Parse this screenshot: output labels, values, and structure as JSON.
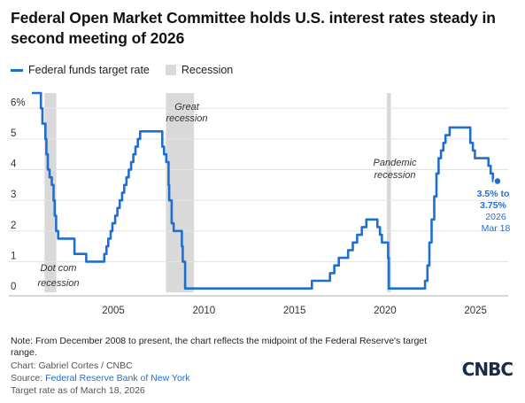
{
  "header": {
    "title": "Federal Open Market Committee holds U.S. interest rates steady in second meeting of 2026"
  },
  "legend": {
    "series_label": "Federal funds target rate",
    "recession_label": "Recession"
  },
  "chart_data": {
    "type": "line",
    "title": "Federal Open Market Committee holds U.S. interest rates steady in second meeting of 2026",
    "xlabel": "",
    "ylabel": "",
    "xlim": [
      2000.5,
      2026.8
    ],
    "ylim": [
      0,
      6.5
    ],
    "x_ticks": [
      2005,
      2010,
      2015,
      2020,
      2025
    ],
    "y_ticks": [
      0,
      1,
      2,
      3,
      4,
      5,
      6
    ],
    "y_tick_labels": [
      "0",
      "1",
      "2",
      "3",
      "4",
      "5",
      "6%"
    ],
    "colors": {
      "series": "#1f6fd1",
      "recession": "#d9d9d9",
      "grid": "#e3e3e3"
    },
    "recessions": [
      {
        "start": 2001.2,
        "end": 2001.85,
        "label": "Dot com recession"
      },
      {
        "start": 2007.9,
        "end": 2009.45,
        "label": "Great recession"
      },
      {
        "start": 2020.1,
        "end": 2020.33,
        "label": "Pandemic recession"
      }
    ],
    "series": [
      {
        "name": "Federal funds target rate",
        "points": [
          [
            2000.5,
            6.5
          ],
          [
            2001.0,
            6.5
          ],
          [
            2001.0,
            6.0
          ],
          [
            2001.08,
            6.0
          ],
          [
            2001.08,
            5.5
          ],
          [
            2001.25,
            5.5
          ],
          [
            2001.25,
            5.0
          ],
          [
            2001.3,
            5.0
          ],
          [
            2001.3,
            4.5
          ],
          [
            2001.38,
            4.5
          ],
          [
            2001.38,
            4.0
          ],
          [
            2001.48,
            4.0
          ],
          [
            2001.48,
            3.75
          ],
          [
            2001.6,
            3.75
          ],
          [
            2001.6,
            3.5
          ],
          [
            2001.7,
            3.5
          ],
          [
            2001.7,
            3.0
          ],
          [
            2001.76,
            3.0
          ],
          [
            2001.76,
            2.5
          ],
          [
            2001.84,
            2.5
          ],
          [
            2001.84,
            2.0
          ],
          [
            2001.95,
            2.0
          ],
          [
            2001.95,
            1.75
          ],
          [
            2002.85,
            1.75
          ],
          [
            2002.85,
            1.25
          ],
          [
            2003.5,
            1.25
          ],
          [
            2003.5,
            1.0
          ],
          [
            2004.5,
            1.0
          ],
          [
            2004.5,
            1.25
          ],
          [
            2004.62,
            1.25
          ],
          [
            2004.62,
            1.5
          ],
          [
            2004.72,
            1.5
          ],
          [
            2004.72,
            1.75
          ],
          [
            2004.85,
            1.75
          ],
          [
            2004.85,
            2.0
          ],
          [
            2004.95,
            2.0
          ],
          [
            2004.95,
            2.25
          ],
          [
            2005.1,
            2.25
          ],
          [
            2005.1,
            2.5
          ],
          [
            2005.22,
            2.5
          ],
          [
            2005.22,
            2.75
          ],
          [
            2005.35,
            2.75
          ],
          [
            2005.35,
            3.0
          ],
          [
            2005.48,
            3.0
          ],
          [
            2005.48,
            3.25
          ],
          [
            2005.6,
            3.25
          ],
          [
            2005.6,
            3.5
          ],
          [
            2005.72,
            3.5
          ],
          [
            2005.72,
            3.75
          ],
          [
            2005.85,
            3.75
          ],
          [
            2005.85,
            4.0
          ],
          [
            2005.98,
            4.0
          ],
          [
            2005.98,
            4.25
          ],
          [
            2006.1,
            4.25
          ],
          [
            2006.1,
            4.5
          ],
          [
            2006.22,
            4.5
          ],
          [
            2006.22,
            4.75
          ],
          [
            2006.35,
            4.75
          ],
          [
            2006.35,
            5.0
          ],
          [
            2006.48,
            5.0
          ],
          [
            2006.48,
            5.25
          ],
          [
            2007.7,
            5.25
          ],
          [
            2007.7,
            4.75
          ],
          [
            2007.8,
            4.75
          ],
          [
            2007.8,
            4.5
          ],
          [
            2007.92,
            4.5
          ],
          [
            2007.92,
            4.25
          ],
          [
            2008.05,
            4.25
          ],
          [
            2008.05,
            3.5
          ],
          [
            2008.08,
            3.5
          ],
          [
            2008.08,
            3.0
          ],
          [
            2008.22,
            3.0
          ],
          [
            2008.22,
            2.25
          ],
          [
            2008.33,
            2.25
          ],
          [
            2008.33,
            2.0
          ],
          [
            2008.78,
            2.0
          ],
          [
            2008.78,
            1.5
          ],
          [
            2008.83,
            1.5
          ],
          [
            2008.83,
            1.0
          ],
          [
            2008.96,
            1.0
          ],
          [
            2008.96,
            0.125
          ],
          [
            2015.96,
            0.125
          ],
          [
            2015.96,
            0.375
          ],
          [
            2016.96,
            0.375
          ],
          [
            2016.96,
            0.625
          ],
          [
            2017.2,
            0.625
          ],
          [
            2017.2,
            0.875
          ],
          [
            2017.45,
            0.875
          ],
          [
            2017.45,
            1.125
          ],
          [
            2017.96,
            1.125
          ],
          [
            2017.96,
            1.375
          ],
          [
            2018.22,
            1.375
          ],
          [
            2018.22,
            1.625
          ],
          [
            2018.46,
            1.625
          ],
          [
            2018.46,
            1.875
          ],
          [
            2018.72,
            1.875
          ],
          [
            2018.72,
            2.125
          ],
          [
            2018.97,
            2.125
          ],
          [
            2018.97,
            2.375
          ],
          [
            2019.58,
            2.375
          ],
          [
            2019.58,
            2.125
          ],
          [
            2019.72,
            2.125
          ],
          [
            2019.72,
            1.875
          ],
          [
            2019.83,
            1.875
          ],
          [
            2019.83,
            1.625
          ],
          [
            2020.17,
            1.625
          ],
          [
            2020.17,
            1.125
          ],
          [
            2020.21,
            1.125
          ],
          [
            2020.21,
            0.125
          ],
          [
            2022.21,
            0.125
          ],
          [
            2022.21,
            0.375
          ],
          [
            2022.34,
            0.375
          ],
          [
            2022.34,
            0.875
          ],
          [
            2022.45,
            0.875
          ],
          [
            2022.45,
            1.625
          ],
          [
            2022.57,
            1.625
          ],
          [
            2022.57,
            2.375
          ],
          [
            2022.72,
            2.375
          ],
          [
            2022.72,
            3.125
          ],
          [
            2022.84,
            3.125
          ],
          [
            2022.84,
            3.875
          ],
          [
            2022.96,
            3.875
          ],
          [
            2022.96,
            4.375
          ],
          [
            2023.09,
            4.375
          ],
          [
            2023.09,
            4.625
          ],
          [
            2023.22,
            4.625
          ],
          [
            2023.22,
            4.875
          ],
          [
            2023.34,
            4.875
          ],
          [
            2023.34,
            5.125
          ],
          [
            2023.57,
            5.125
          ],
          [
            2023.57,
            5.375
          ],
          [
            2024.71,
            5.375
          ],
          [
            2024.71,
            4.875
          ],
          [
            2024.85,
            4.875
          ],
          [
            2024.85,
            4.625
          ],
          [
            2024.96,
            4.625
          ],
          [
            2024.96,
            4.375
          ],
          [
            2025.71,
            4.375
          ],
          [
            2025.71,
            4.125
          ],
          [
            2025.83,
            4.125
          ],
          [
            2025.83,
            3.875
          ],
          [
            2025.96,
            3.875
          ],
          [
            2025.96,
            3.625
          ],
          [
            2026.21,
            3.625
          ]
        ]
      }
    ],
    "annotations": [
      {
        "label": "Dot com recession"
      },
      {
        "label": "Great recession"
      },
      {
        "label": "Pandemic recession"
      },
      {
        "label": "3.5% to 3.75%",
        "sub": "2026 Mar 18",
        "x": 2026.21,
        "y": 3.625
      }
    ]
  },
  "annotations": {
    "dotcom_line1": "Dot com",
    "dotcom_line2": "recession",
    "great_line1": "Great",
    "great_line2": "recession",
    "pandemic_line1": "Pandemic",
    "pandemic_line2": "recession",
    "endpoint_line1": "3.5% to",
    "endpoint_line2": "3.75%",
    "endpoint_line3": "2026",
    "endpoint_line4": "Mar 18"
  },
  "footer": {
    "note": "Note: From December 2008 to present, the chart reflects the midpoint of the Federal Reserve's target range.",
    "chart_credit": "Chart: Gabriel Cortes / CNBC",
    "source_prefix": "Source: ",
    "source_link": "Federal Reserve Bank of New York",
    "target_note": "Target rate as of March 18, 2026",
    "logo_text": "CNBC"
  }
}
